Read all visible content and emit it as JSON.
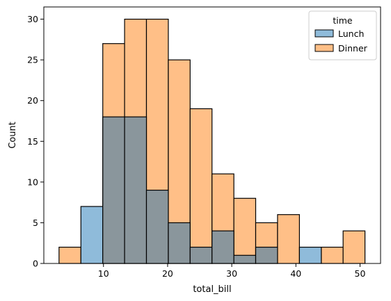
{
  "chart_data": {
    "type": "bar",
    "subtype": "histogram-overlay",
    "xlabel": "total_bill",
    "ylabel": "Count",
    "xlim": [
      0.7,
      53.2
    ],
    "ylim": [
      0,
      31.5
    ],
    "xticks": [
      10,
      20,
      30,
      40,
      50
    ],
    "yticks": [
      0,
      5,
      10,
      15,
      20,
      25,
      30
    ],
    "grid": false,
    "bin_edges": [
      3.07,
      6.48,
      9.89,
      13.29,
      16.7,
      20.11,
      23.51,
      26.92,
      30.33,
      33.73,
      37.14,
      40.55,
      43.96,
      47.36,
      50.77
    ],
    "series": [
      {
        "name": "Lunch",
        "values": [
          0,
          7,
          18,
          18,
          9,
          5,
          2,
          4,
          1,
          2,
          0,
          2,
          0,
          0
        ],
        "color": "#1f77b4"
      },
      {
        "name": "Dinner",
        "values": [
          2,
          0,
          27,
          30,
          30,
          25,
          19,
          11,
          8,
          5,
          6,
          0,
          2,
          4
        ],
        "color": "#ff7f0e"
      }
    ],
    "legend": {
      "title": "time",
      "position": "top-right",
      "entries": [
        "Lunch",
        "Dinner"
      ]
    }
  }
}
